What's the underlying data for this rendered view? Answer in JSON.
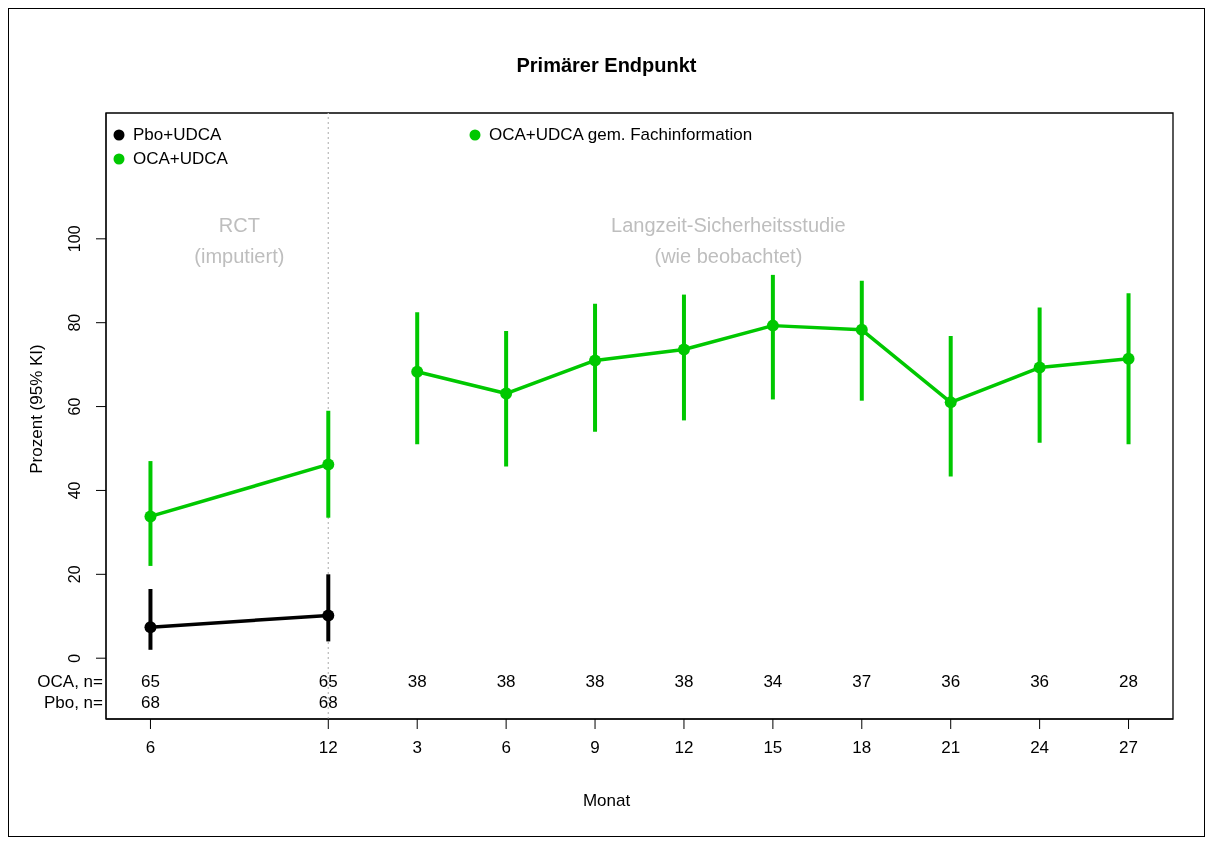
{
  "chart_data": {
    "type": "line",
    "title": "Primärer Endpunkt",
    "xlabel": "Monat",
    "ylabel": "Prozent (95% KI)",
    "categories": [
      "6",
      null,
      "12",
      "3",
      "6",
      "9",
      "12",
      "15",
      "18",
      "21",
      "24",
      "27"
    ],
    "series": [
      {
        "name": "Pbo+UDCA",
        "color": "#000000",
        "values": [
          7.4,
          null,
          10.2,
          null,
          null,
          null,
          null,
          null,
          null,
          null,
          null,
          null
        ],
        "errors": [
          [
            2,
            16.5
          ],
          null,
          [
            4,
            20
          ],
          null,
          null,
          null,
          null,
          null,
          null,
          null,
          null,
          null
        ]
      },
      {
        "name": "OCA+UDCA",
        "color": "#00c800",
        "values": [
          33.8,
          null,
          46.2,
          null,
          null,
          null,
          null,
          null,
          null,
          null,
          null,
          null
        ],
        "errors": [
          [
            22,
            47
          ],
          null,
          [
            33.5,
            59
          ],
          null,
          null,
          null,
          null,
          null,
          null,
          null,
          null,
          null
        ]
      },
      {
        "name": "OCA+UDCA gem. Fachinformation",
        "color": "#00c800",
        "values": [
          null,
          null,
          null,
          68.3,
          63.1,
          71,
          73.6,
          79.3,
          78.3,
          61,
          69.3,
          71.4
        ],
        "errors": [
          null,
          null,
          null,
          [
            51,
            82.5
          ],
          [
            45.7,
            78
          ],
          [
            54,
            84.5
          ],
          [
            56.7,
            86.7
          ],
          [
            61.7,
            91.4
          ],
          [
            61.4,
            90
          ],
          [
            43.3,
            76.8
          ],
          [
            51.4,
            83.6
          ],
          [
            51,
            87
          ]
        ]
      }
    ],
    "ylim": [
      -14.5,
      130
    ],
    "yticks": [
      0,
      20,
      40,
      60,
      80,
      100
    ],
    "grid": false,
    "legend": "top left",
    "marker": "circle",
    "line_style": "solid",
    "ref_lines": [
      {
        "axis": "x",
        "value": "12",
        "color": "#bebebe",
        "line_style": "dotted"
      }
    ],
    "annotations": [
      "RCT\n(imputiert)",
      "Langzeit-Sicherheitsstudie\n(wie beobachtet)",
      "OCA, n=",
      "65",
      "65",
      "38",
      "38",
      "38",
      "38",
      "34",
      "37",
      "36",
      "36",
      "28",
      "Pbo, n=",
      "68",
      "68"
    ]
  }
}
